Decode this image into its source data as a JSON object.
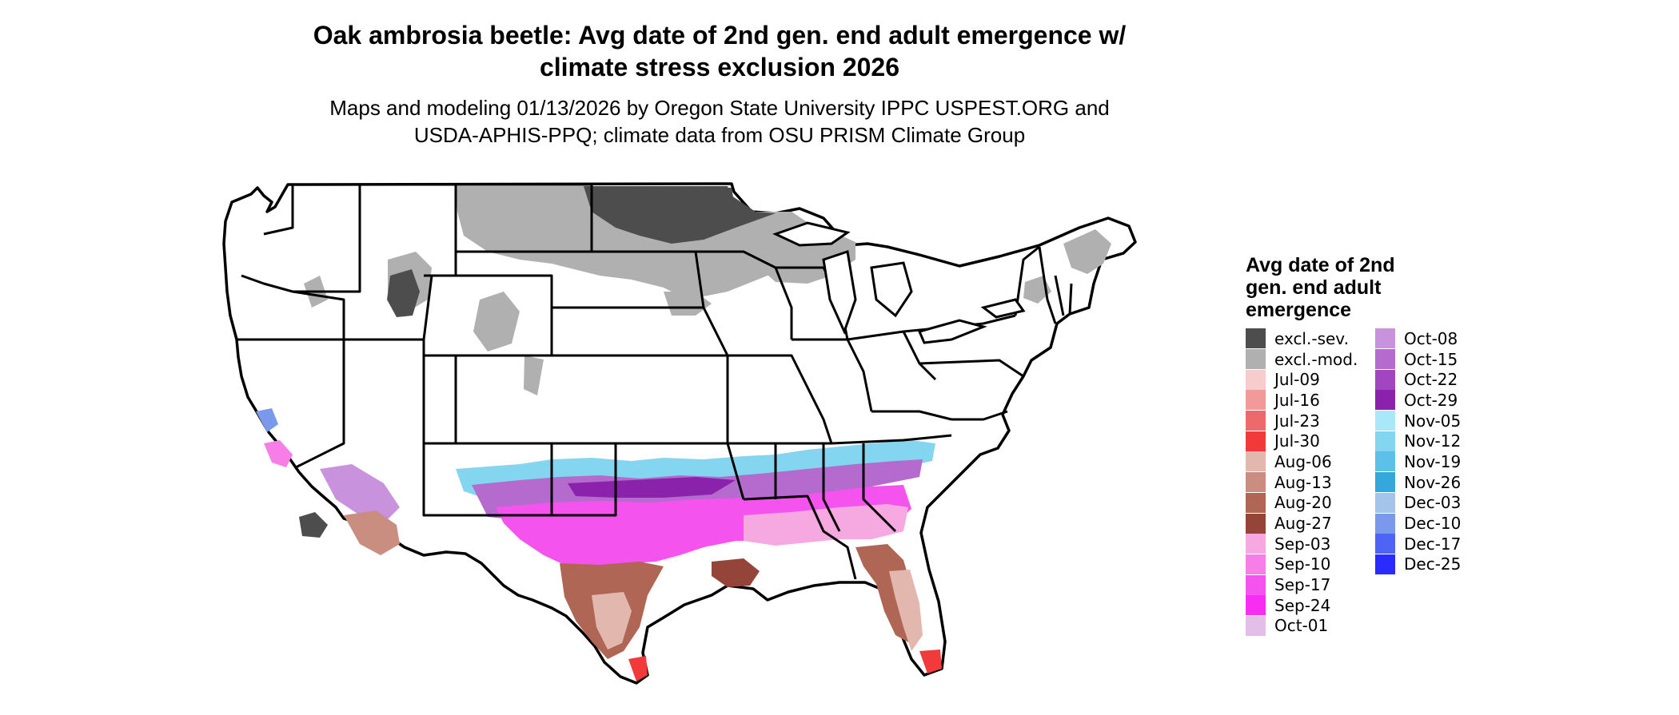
{
  "header": {
    "title_line1": "Oak ambrosia beetle: Avg date of 2nd gen. end adult emergence w/",
    "title_line2": "climate stress exclusion 2026",
    "subtitle_line1": "Maps and modeling 01/13/2026 by Oregon State University IPPC USPEST.ORG and",
    "subtitle_line2": "USDA-APHIS-PPQ; climate data from OSU PRISM Climate Group"
  },
  "legend": {
    "title": "Avg date of 2nd gen. end adult emergence",
    "items": [
      {
        "label": "excl.-sev.",
        "color": "#4d4d4d"
      },
      {
        "label": "excl.-mod.",
        "color": "#b0b0b0"
      },
      {
        "label": "Jul-09",
        "color": "#f7cccc"
      },
      {
        "label": "Jul-16",
        "color": "#f29999"
      },
      {
        "label": "Jul-23",
        "color": "#ee6a6a"
      },
      {
        "label": "Jul-30",
        "color": "#f23a3a"
      },
      {
        "label": "Aug-06",
        "color": "#e2b8ae"
      },
      {
        "label": "Aug-13",
        "color": "#c98e80"
      },
      {
        "label": "Aug-20",
        "color": "#b06655"
      },
      {
        "label": "Aug-27",
        "color": "#95443a"
      },
      {
        "label": "Sep-03",
        "color": "#f6a8e0"
      },
      {
        "label": "Sep-10",
        "color": "#f67ee6"
      },
      {
        "label": "Sep-17",
        "color": "#f553ee"
      },
      {
        "label": "Sep-24",
        "color": "#f52ef2"
      },
      {
        "label": "Oct-01",
        "color": "#e2bfe8"
      },
      {
        "label": "Oct-08",
        "color": "#c992dc"
      },
      {
        "label": "Oct-15",
        "color": "#b56ace"
      },
      {
        "label": "Oct-22",
        "color": "#a246c0"
      },
      {
        "label": "Oct-29",
        "color": "#8b22ac"
      },
      {
        "label": "Nov-05",
        "color": "#a8e8f8"
      },
      {
        "label": "Nov-12",
        "color": "#84d6f0"
      },
      {
        "label": "Nov-19",
        "color": "#5cc0e8"
      },
      {
        "label": "Nov-26",
        "color": "#34a8dc"
      },
      {
        "label": "Dec-03",
        "color": "#a4c4ea"
      },
      {
        "label": "Dec-10",
        "color": "#7a98ec"
      },
      {
        "label": "Dec-17",
        "color": "#4e64f4"
      },
      {
        "label": "Dec-25",
        "color": "#2a2cff"
      }
    ]
  },
  "map": {
    "region": "Contiguous United States",
    "boundary_color": "#000000",
    "land_color": "#ffffff"
  }
}
